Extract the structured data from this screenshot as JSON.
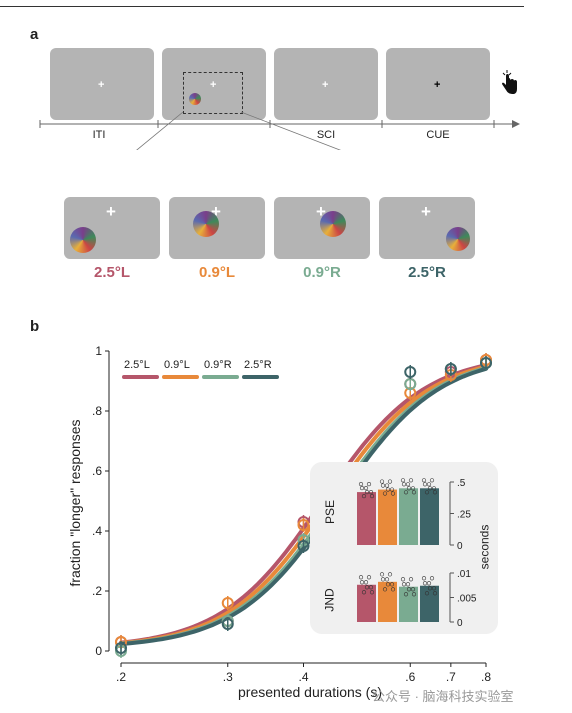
{
  "top_rule": true,
  "panel_a": {
    "letter": "a",
    "timeline_labels": [
      "ITI",
      "SCI",
      "CUE"
    ],
    "conditions": [
      {
        "label": "2.5°L",
        "color": "#b5566a"
      },
      {
        "label": "0.9°L",
        "color": "#e8893a"
      },
      {
        "label": "0.9°R",
        "color": "#7aab91"
      },
      {
        "label": "2.5°R",
        "color": "#3d6468"
      }
    ],
    "cursor_icon": "hand-pointer-icon"
  },
  "panel_b": {
    "letter": "b",
    "chart_data": {
      "type": "line",
      "xlabel": "presented durations (s)",
      "ylabel": "fraction \"longer\" responses",
      "x_ticks": [
        ".2",
        ".3",
        ".4",
        ".6",
        ".7",
        ".8"
      ],
      "x_tick_values": [
        0.2,
        0.3,
        0.4,
        0.6,
        0.7,
        0.8
      ],
      "x_scale": "log",
      "y_ticks": [
        "0",
        ".2",
        ".4",
        ".6",
        ".8",
        "1"
      ],
      "ylim": [
        0,
        1
      ],
      "legend": [
        "2.5°L",
        "0.9°L",
        "0.9°R",
        "2.5°R"
      ],
      "legend_placement": "top-left",
      "series": [
        {
          "name": "2.5°L",
          "color": "#b5566a",
          "mid": 0.43,
          "x": [
            0.2,
            0.3,
            0.4,
            0.6,
            0.7,
            0.8
          ],
          "y": [
            0.03,
            0.1,
            0.43,
            0.89,
            0.93,
            0.97
          ]
        },
        {
          "name": "0.9°L",
          "color": "#e8893a",
          "mid": 0.44,
          "x": [
            0.2,
            0.3,
            0.4,
            0.6,
            0.7,
            0.8
          ],
          "y": [
            0.03,
            0.16,
            0.42,
            0.86,
            0.92,
            0.97
          ]
        },
        {
          "name": "0.9°R",
          "color": "#7aab91",
          "mid": 0.45,
          "x": [
            0.2,
            0.3,
            0.4,
            0.6,
            0.7,
            0.8
          ],
          "y": [
            0.0,
            0.1,
            0.37,
            0.89,
            0.94,
            0.96
          ]
        },
        {
          "name": "2.5°R",
          "color": "#3d6468",
          "mid": 0.455,
          "x": [
            0.2,
            0.3,
            0.4,
            0.6,
            0.7,
            0.8
          ],
          "y": [
            0.01,
            0.09,
            0.35,
            0.93,
            0.94,
            0.96
          ]
        }
      ],
      "inset": {
        "pse": {
          "label": "PSE",
          "values": [
            0.42,
            0.44,
            0.45,
            0.45
          ],
          "ticks": [
            ".5",
            ".25",
            "0"
          ]
        },
        "jnd": {
          "label": "JND",
          "values": [
            0.0076,
            0.0082,
            0.0072,
            0.0074
          ],
          "ticks": [
            ".01",
            ".005",
            "0"
          ]
        },
        "side_label": "seconds"
      }
    }
  },
  "watermark": "公众号 · 脑海科技实验室"
}
